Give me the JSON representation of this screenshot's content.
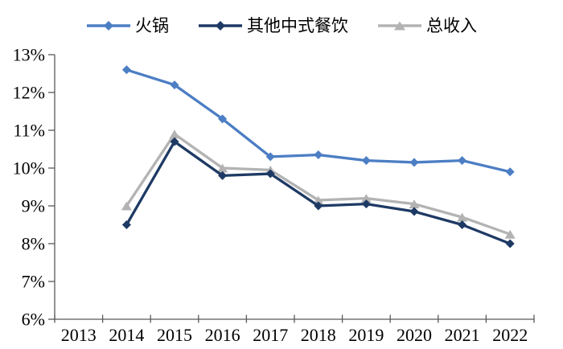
{
  "style": {
    "background": "#ffffff",
    "axis_color": "#595959",
    "text_color": "#000000"
  },
  "chart_data": {
    "type": "line",
    "title": "",
    "xlabel": "",
    "ylabel": "",
    "grid": false,
    "legend_position": "top",
    "categories": [
      "2013",
      "2014",
      "2015",
      "2016",
      "2017",
      "2018",
      "2019",
      "2020",
      "2021",
      "2022"
    ],
    "series": [
      {
        "id": "huoguo",
        "name": "火锅",
        "color": "#4C7EC4",
        "marker": "diamond",
        "values": [
          null,
          12.6,
          12.2,
          11.3,
          10.3,
          10.35,
          10.2,
          10.15,
          10.2,
          9.9
        ]
      },
      {
        "id": "qita-zhongshi-canyin",
        "name": "其他中式餐饮",
        "color": "#1E3A64",
        "marker": "diamond",
        "values": [
          null,
          8.5,
          10.7,
          9.8,
          9.85,
          9.0,
          9.05,
          8.85,
          8.5,
          8.0
        ]
      },
      {
        "id": "zong-shouru",
        "name": "总收入",
        "color": "#B3B3B3",
        "marker": "triangle",
        "values": [
          null,
          9.0,
          10.9,
          10.0,
          9.95,
          9.15,
          9.2,
          9.05,
          8.7,
          8.25
        ]
      }
    ],
    "ylim": [
      6,
      13
    ],
    "yticks": [
      6,
      7,
      8,
      9,
      10,
      11,
      12,
      13
    ],
    "ytick_suffix": "%"
  }
}
